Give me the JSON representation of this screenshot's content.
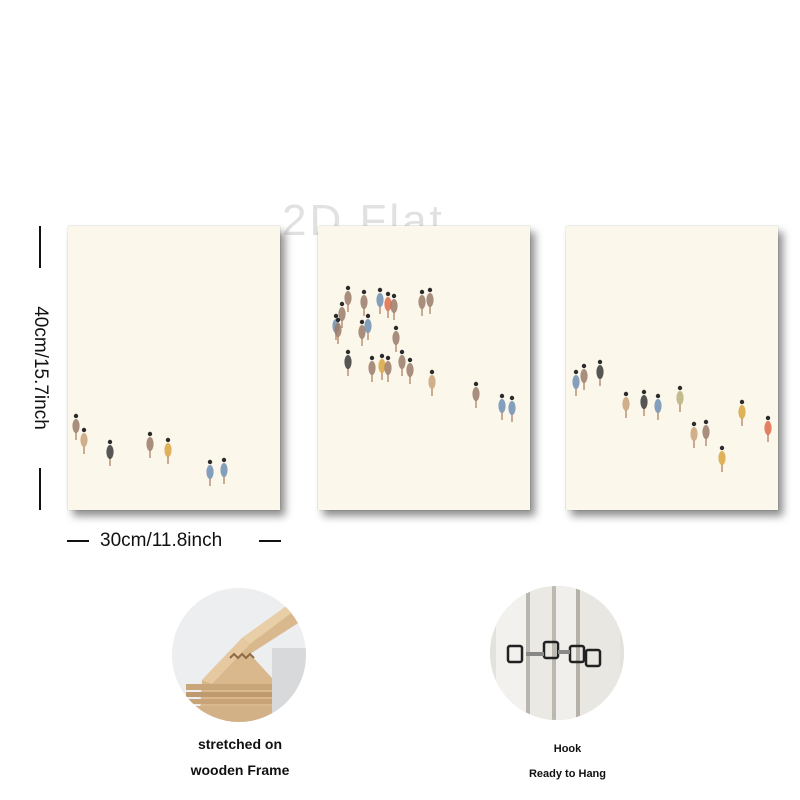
{
  "watermark": "2D Flat",
  "dimensions": {
    "height_label": "40cm/15.7inch",
    "width_label": "30cm/11.8inch"
  },
  "panels": [
    {
      "name": "left-canvas",
      "subject": "small figures at lower-left"
    },
    {
      "name": "center-canvas",
      "subject": "cluster of small figures"
    },
    {
      "name": "right-canvas",
      "subject": "row of small figures"
    }
  ],
  "features": {
    "frame_caption_line1": "stretched on",
    "frame_caption_line2": "wooden Frame",
    "hook_caption_line1": "Hook",
    "hook_caption_line2": "Ready to Hang"
  },
  "colors": {
    "canvas": "#fbf7ea",
    "figure_colors": [
      "#9a7b6a",
      "#c9a27a",
      "#6f8fb3",
      "#d9a441",
      "#e06a4a",
      "#3a3a3a",
      "#b7b07a"
    ]
  }
}
